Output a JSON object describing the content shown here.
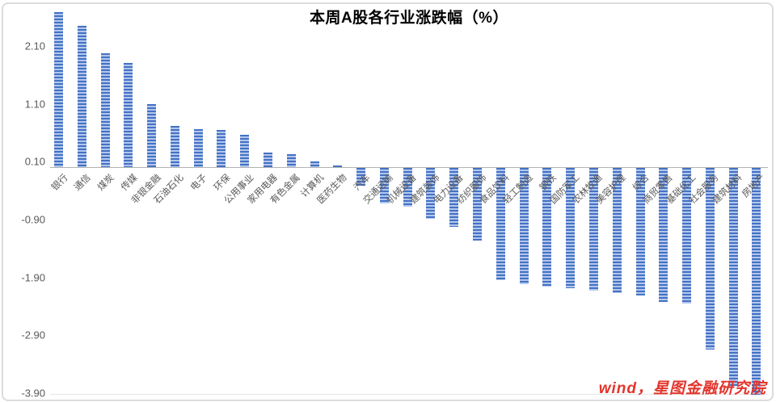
{
  "title": "本周A股各行业涨跌幅（%）",
  "watermark": "wind，星图金融研究院",
  "colors": {
    "bar_dark": "#4472C4",
    "bar_light": "#B3C6EC",
    "axis_line": "#B3B3B3",
    "tick_text": "#595959",
    "title_text": "#000000",
    "watermark_red": "#E2352D"
  },
  "chart_data": {
    "type": "bar",
    "title": "本周A股各行业涨跌幅（%）",
    "categories": [
      "银行",
      "通信",
      "煤炭",
      "传媒",
      "非银金融",
      "石油石化",
      "电子",
      "环保",
      "公用事业",
      "家用电器",
      "有色金属",
      "计算机",
      "医药生物",
      "汽车",
      "交通运输",
      "机械设备",
      "建筑装饰",
      "电力设备",
      "纺织服饰",
      "食品饮料",
      "轻工制造",
      "钢铁",
      "国防军工",
      "农林牧渔",
      "美容护理",
      "综合",
      "商贸零售",
      "基础化工",
      "社会服务",
      "建筑材料",
      "房地产"
    ],
    "values": [
      2.68,
      2.45,
      1.97,
      1.81,
      1.09,
      0.71,
      0.66,
      0.65,
      0.57,
      0.25,
      0.23,
      0.1,
      0.03,
      -0.3,
      -0.61,
      -0.67,
      -0.88,
      -1.01,
      -1.25,
      -1.94,
      -2.01,
      -2.05,
      -2.07,
      -2.12,
      -2.16,
      -2.2,
      -2.32,
      -2.34,
      -3.14,
      -3.76,
      -3.92
    ],
    "y_ticks": [
      "2.10",
      "1.10",
      "0.10",
      "-0.90",
      "-1.90",
      "-2.90",
      "-3.90"
    ],
    "ylim": [
      -3.9,
      2.78
    ],
    "xlabel": "",
    "ylabel": "",
    "grid": "none",
    "legend": "none",
    "bar_style": "horizontal-striped-blue",
    "category_label_rotation_deg": -45
  }
}
